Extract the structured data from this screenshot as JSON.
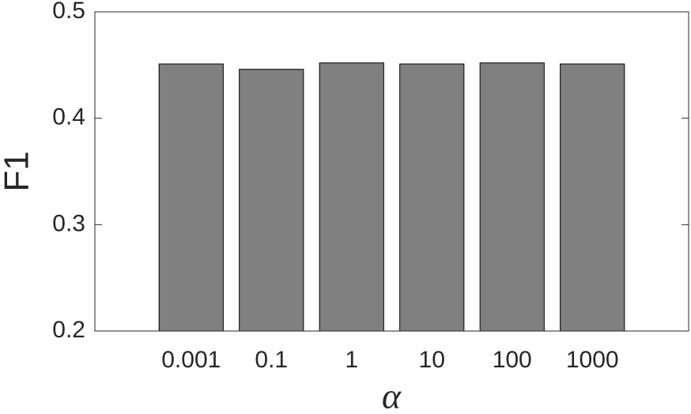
{
  "chart_data": {
    "type": "bar",
    "x_label": "α",
    "y_label": "F1",
    "categories": [
      "0.001",
      "0.1",
      "1",
      "10",
      "100",
      "1000"
    ],
    "values": [
      0.451,
      0.446,
      0.452,
      0.451,
      0.452,
      0.451
    ],
    "color": "#808080",
    "ylim": [
      0.2,
      0.5
    ],
    "yticks": [
      0.2,
      0.3,
      0.4,
      0.5
    ],
    "grid": false
  }
}
